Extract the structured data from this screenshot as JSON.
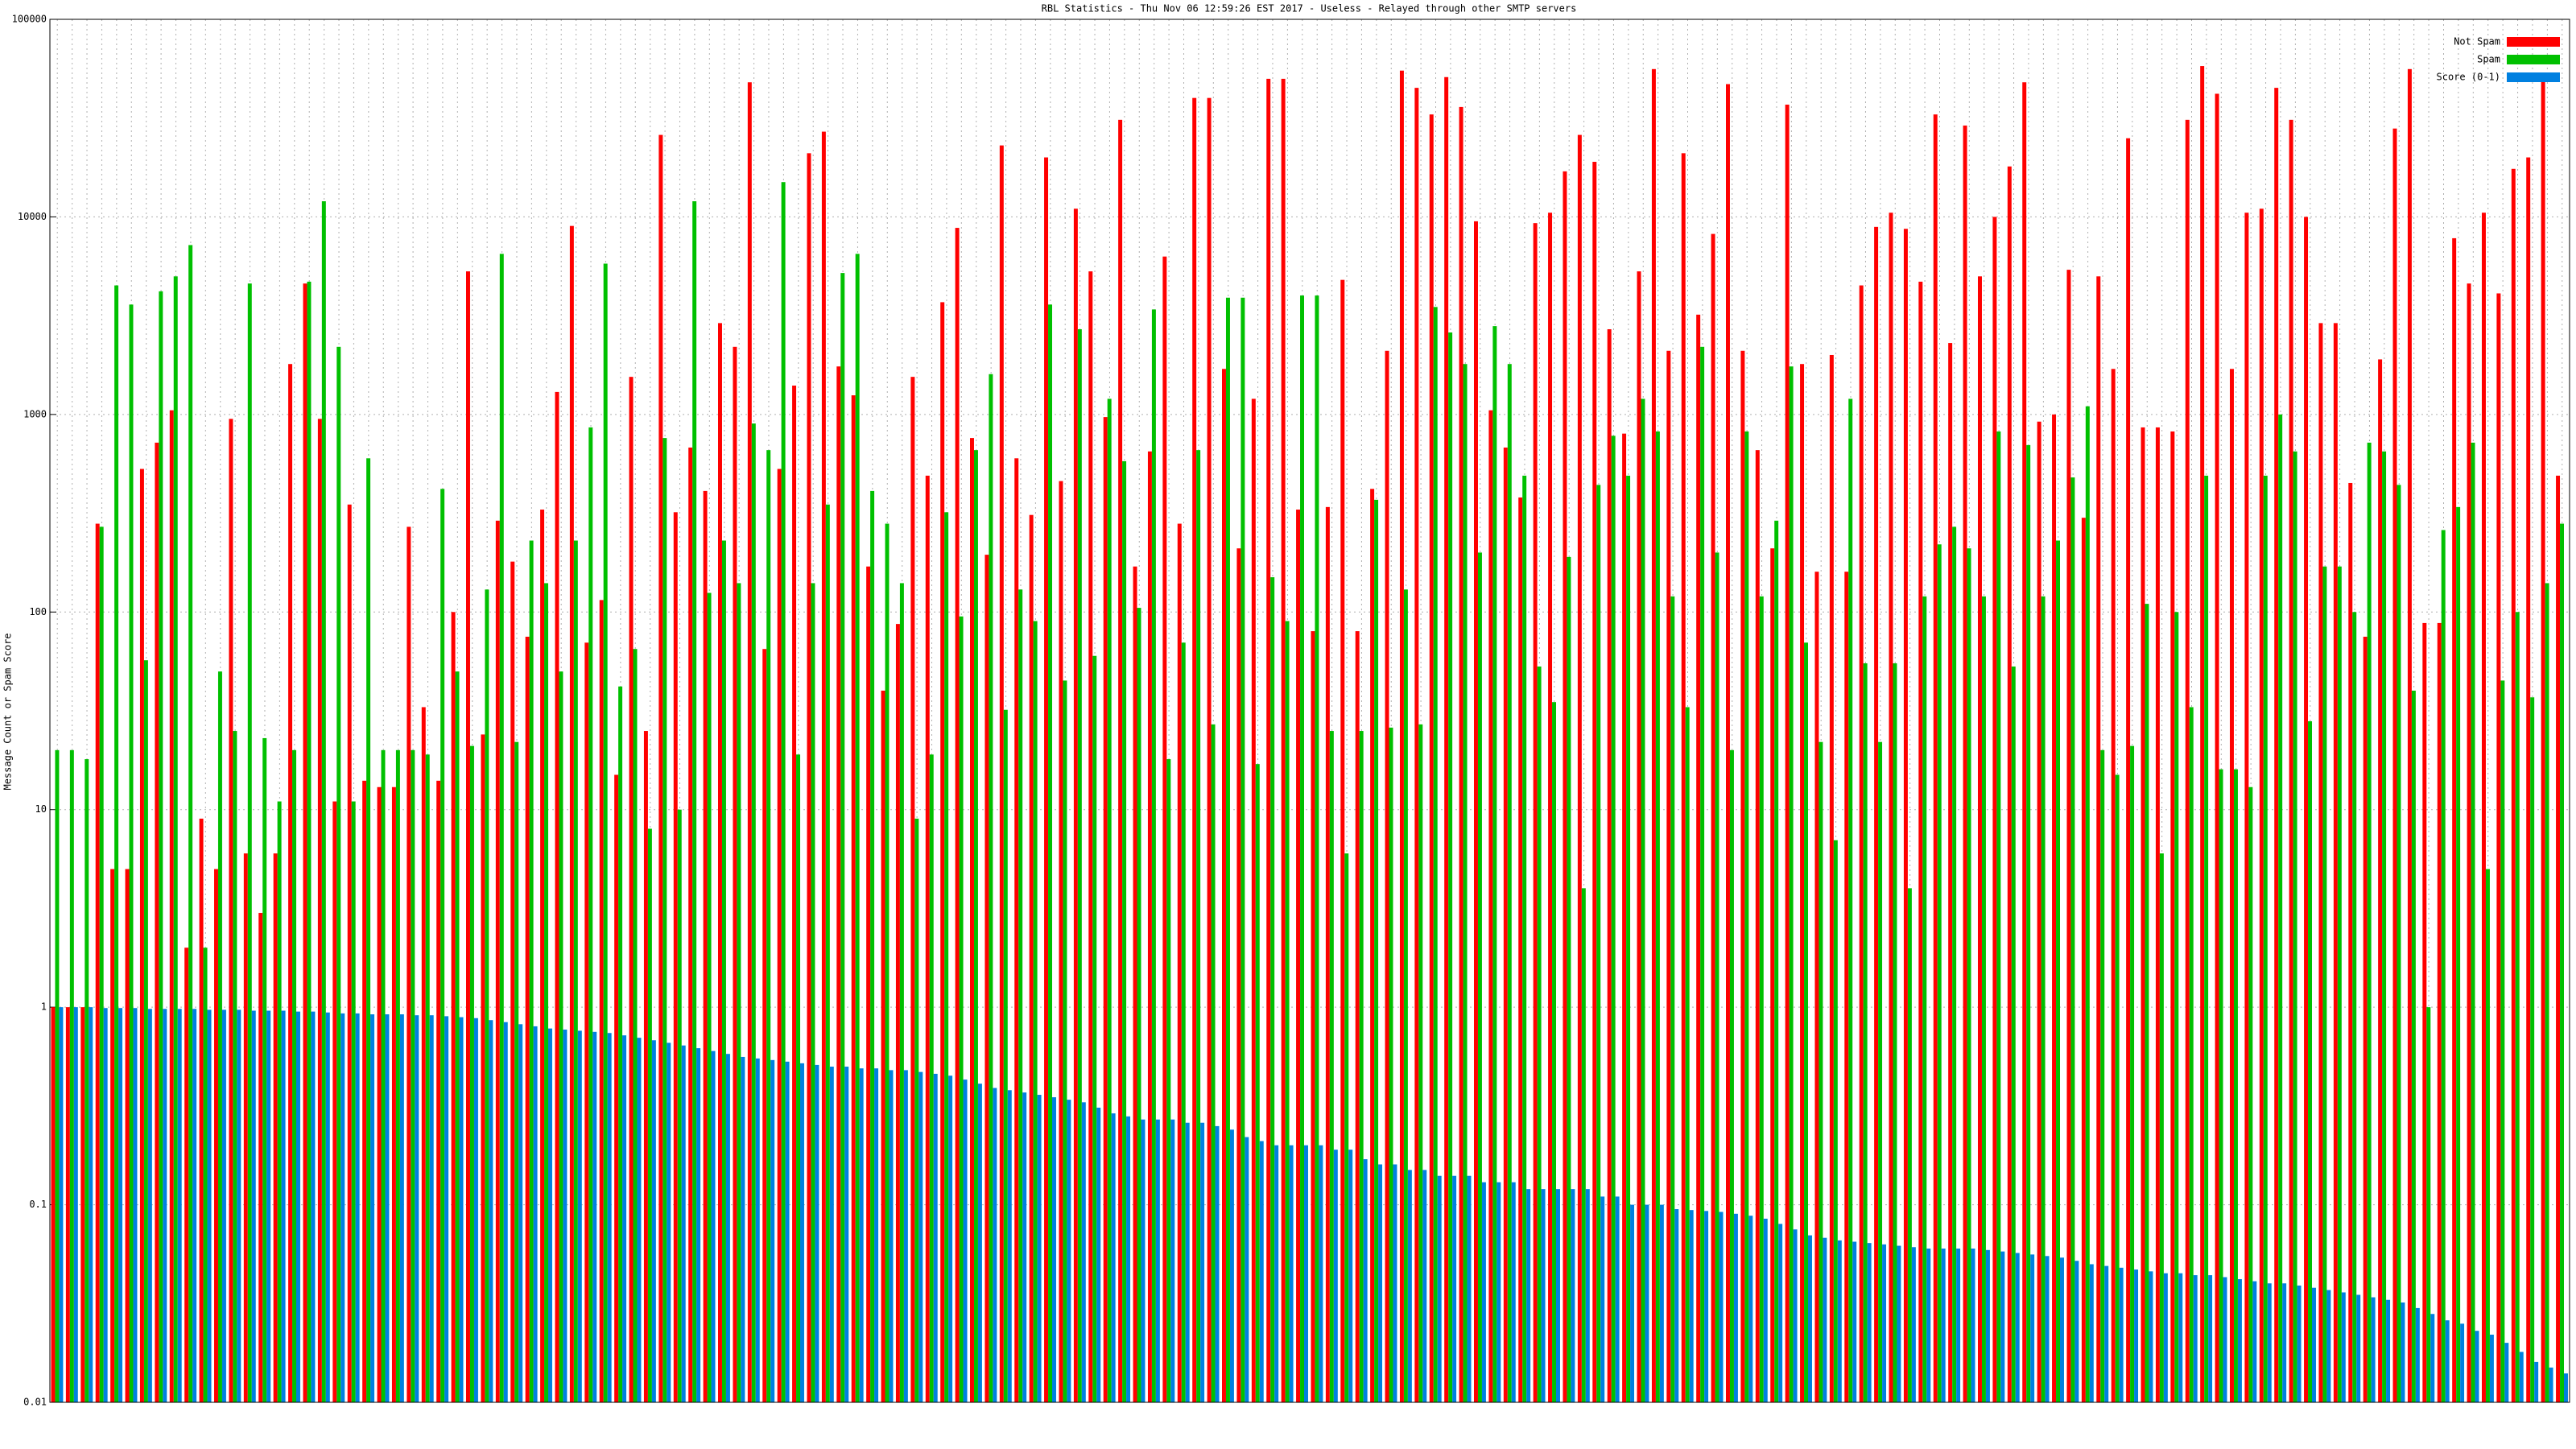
{
  "chart_data": {
    "type": "bar",
    "title": "RBL Statistics - Thu Nov 06 12:59:26 EST 2017 - Useless - Relayed through other SMTP servers",
    "y_label": "Message Count or Spam Score",
    "log_scale": true,
    "grid": true,
    "legend": "top-right",
    "ylim": [
      0.01,
      100000
    ],
    "yticks": [
      0.01,
      0.1,
      1,
      10,
      100,
      1000,
      10000,
      100000
    ],
    "categories": [
      null,
      null,
      null,
      null,
      null,
      null,
      null,
      null,
      null,
      null,
      null,
      null,
      null,
      null,
      null,
      null,
      null,
      null,
      null,
      null,
      null,
      null,
      null,
      null,
      null,
      null,
      null,
      null,
      null,
      null,
      null,
      null,
      null,
      null,
      null,
      null,
      null,
      null,
      null,
      null,
      null,
      null,
      null,
      null,
      null,
      null,
      null,
      null,
      null,
      null,
      null,
      null,
      null,
      null,
      null,
      null,
      null,
      null,
      null,
      null,
      null,
      null,
      null,
      null,
      null,
      null,
      null,
      null,
      null,
      null,
      null,
      null,
      null,
      null,
      null,
      null,
      null,
      null,
      null,
      null,
      null,
      null,
      null,
      null,
      null,
      null,
      null,
      null,
      null,
      null,
      null,
      null,
      null,
      null,
      null,
      null,
      null,
      null,
      null,
      null,
      null,
      null,
      null,
      null,
      null,
      null,
      null,
      null,
      null,
      null,
      null,
      null,
      null,
      null,
      null,
      null,
      null,
      null,
      null,
      null,
      null,
      null,
      null,
      null,
      null,
      null,
      null,
      null,
      null,
      null,
      null,
      null,
      null,
      null,
      null,
      null,
      null,
      null,
      null,
      null,
      null,
      null,
      null,
      null,
      null,
      null,
      null,
      null,
      null,
      null,
      null,
      null,
      null,
      null,
      null,
      null,
      null,
      null,
      null,
      null,
      null,
      null,
      null,
      null,
      null,
      null,
      null,
      null,
      null,
      null
    ],
    "series": [
      {
        "name": "Not Spam",
        "color": "#ff0000",
        "values": [
          1,
          1,
          1,
          280,
          5,
          5,
          530,
          720,
          1050,
          2,
          9,
          5,
          950,
          6,
          3,
          6,
          1800,
          4600,
          950,
          11,
          350,
          14,
          13,
          13,
          270,
          33,
          14,
          100,
          5300,
          24,
          290,
          180,
          75,
          330,
          1300,
          9000,
          70,
          115,
          15,
          1550,
          25,
          26000,
          320,
          680,
          410,
          2900,
          2200,
          48000,
          65,
          530,
          1400,
          21000,
          27000,
          1750,
          1250,
          170,
          40,
          87,
          1550,
          490,
          3700,
          8800,
          760,
          195,
          23000,
          600,
          310,
          20000,
          460,
          11000,
          5300,
          970,
          31000,
          170,
          650,
          6300,
          280,
          40000,
          40000,
          1700,
          210,
          1200,
          50000,
          50000,
          330,
          80,
          340,
          4800,
          80,
          420,
          2100,
          55000,
          45000,
          33000,
          51000,
          36000,
          9500,
          1050,
          680,
          380,
          9300,
          10500,
          17000,
          26000,
          19000,
          2700,
          800,
          5300,
          56000,
          2100,
          21000,
          3200,
          8200,
          47000,
          2100,
          660,
          210,
          37000,
          1800,
          160,
          2000,
          160,
          4500,
          8900,
          10500,
          8700,
          4700,
          33000,
          2300,
          29000,
          5000,
          10000,
          18000,
          48000,
          920,
          1000,
          5400,
          300,
          5000,
          1700,
          25000,
          860,
          860,
          820,
          31000,
          58000,
          42000,
          1700,
          10500,
          11000,
          45000,
          31000,
          10000,
          2900,
          2900,
          450,
          75,
          1900,
          28000,
          56000,
          88,
          88,
          7800,
          4600,
          10500,
          4100,
          17500,
          20000,
          49000,
          490
        ]
      },
      {
        "name": "Spam",
        "color": "#00c000",
        "values": [
          20,
          20,
          18,
          270,
          4500,
          3600,
          57,
          4200,
          5000,
          7200,
          2,
          50,
          25,
          4600,
          23,
          11,
          20,
          4700,
          12000,
          2200,
          11,
          600,
          20,
          20,
          20,
          19,
          420,
          50,
          21,
          130,
          6500,
          22,
          230,
          140,
          50,
          230,
          860,
          5800,
          42,
          65,
          8,
          760,
          10,
          12000,
          125,
          230,
          140,
          900,
          660,
          15000,
          19,
          140,
          350,
          5200,
          6500,
          410,
          280,
          140,
          9,
          19,
          320,
          95,
          660,
          1600,
          32,
          130,
          90,
          3600,
          45,
          2700,
          60,
          1200,
          580,
          105,
          3400,
          18,
          70,
          660,
          27,
          3900,
          3900,
          17,
          150,
          90,
          4000,
          4000,
          25,
          6,
          25,
          370,
          26,
          130,
          27,
          3500,
          2600,
          1800,
          200,
          2800,
          1800,
          490,
          53,
          35,
          190,
          4,
          440,
          780,
          490,
          1200,
          820,
          120,
          33,
          2200,
          200,
          20,
          820,
          120,
          290,
          1750,
          70,
          22,
          7,
          1200,
          55,
          22,
          55,
          4,
          120,
          220,
          270,
          210,
          120,
          820,
          53,
          700,
          120,
          230,
          480,
          1100,
          20,
          15,
          21,
          110,
          6,
          100,
          33,
          490,
          16,
          16,
          13,
          490,
          1000,
          650,
          28,
          170,
          170,
          100,
          720,
          650,
          440,
          40,
          1,
          260,
          340,
          720,
          5,
          45,
          100,
          37,
          140,
          280
        ]
      },
      {
        "name": "Score (0-1)",
        "color": "#0080e0",
        "values": [
          1,
          1,
          1,
          0.99,
          0.99,
          0.99,
          0.98,
          0.98,
          0.98,
          0.98,
          0.97,
          0.97,
          0.97,
          0.96,
          0.96,
          0.96,
          0.95,
          0.95,
          0.94,
          0.93,
          0.93,
          0.92,
          0.92,
          0.92,
          0.91,
          0.91,
          0.9,
          0.89,
          0.88,
          0.86,
          0.84,
          0.82,
          0.8,
          0.78,
          0.77,
          0.76,
          0.75,
          0.74,
          0.72,
          0.7,
          0.68,
          0.66,
          0.64,
          0.62,
          0.6,
          0.58,
          0.56,
          0.55,
          0.54,
          0.53,
          0.52,
          0.51,
          0.5,
          0.5,
          0.49,
          0.49,
          0.48,
          0.48,
          0.47,
          0.46,
          0.45,
          0.43,
          0.41,
          0.39,
          0.38,
          0.37,
          0.36,
          0.35,
          0.34,
          0.33,
          0.31,
          0.29,
          0.28,
          0.27,
          0.27,
          0.27,
          0.26,
          0.26,
          0.25,
          0.24,
          0.22,
          0.21,
          0.2,
          0.2,
          0.2,
          0.2,
          0.19,
          0.19,
          0.17,
          0.16,
          0.16,
          0.15,
          0.15,
          0.14,
          0.14,
          0.14,
          0.13,
          0.13,
          0.13,
          0.12,
          0.12,
          0.12,
          0.12,
          0.12,
          0.11,
          0.11,
          0.1,
          0.1,
          0.1,
          0.095,
          0.094,
          0.093,
          0.092,
          0.09,
          0.088,
          0.085,
          0.08,
          0.075,
          0.07,
          0.068,
          0.066,
          0.065,
          0.064,
          0.063,
          0.062,
          0.061,
          0.06,
          0.06,
          0.06,
          0.06,
          0.059,
          0.058,
          0.057,
          0.056,
          0.055,
          0.054,
          0.052,
          0.05,
          0.049,
          0.048,
          0.047,
          0.046,
          0.045,
          0.045,
          0.044,
          0.044,
          0.043,
          0.042,
          0.041,
          0.04,
          0.04,
          0.039,
          0.038,
          0.037,
          0.036,
          0.035,
          0.034,
          0.033,
          0.032,
          0.03,
          0.028,
          0.026,
          0.025,
          0.023,
          0.022,
          0.02,
          0.018,
          0.016,
          0.015,
          0.014
        ]
      }
    ]
  }
}
